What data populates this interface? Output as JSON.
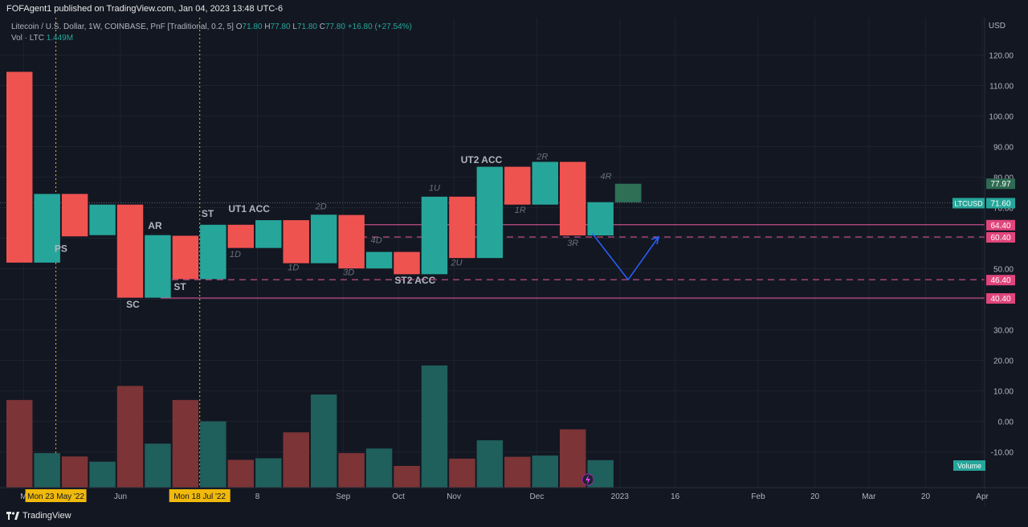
{
  "header": {
    "published": "FOFAgent1 published on TradingView.com, Jan 04, 2023 13:48 UTC-6"
  },
  "legend": {
    "symbol": "Litecoin / U.S. Dollar, 1W, COINBASE, PnF [Traditional, 0.2, 5]",
    "o_label": "O",
    "o": "71.80",
    "h_label": "H",
    "h": "77.80",
    "l_label": "L",
    "l": "71.80",
    "c_label": "C",
    "c": "77.80",
    "change": "+16.80 (+27.54%)",
    "vol_label": "Vol · LTC",
    "vol_value": "1.449M"
  },
  "footer": {
    "brand": "TradingView"
  },
  "colors": {
    "up": "#26a69a",
    "down": "#ef5350",
    "level": "#e85aa0",
    "projection": "#2962ff",
    "marker": "#f0b90b"
  },
  "chart_data": {
    "type": "candlestick",
    "price_axis": {
      "currency": "USD",
      "ticks": [
        "120.00",
        "110.00",
        "100.00",
        "90.00",
        "80.00",
        "70.00",
        "60.00",
        "50.00",
        "40.00",
        "30.00",
        "20.00",
        "10.00",
        "0.00",
        "-10.00"
      ],
      "range": [
        -20,
        130
      ]
    },
    "bars": [
      {
        "open": 114.5,
        "close": 52.0
      },
      {
        "open": 52.0,
        "close": 74.5
      },
      {
        "open": 74.5,
        "close": 60.6
      },
      {
        "open": 61.0,
        "close": 71.0
      },
      {
        "open": 71.0,
        "close": 40.5
      },
      {
        "open": 40.5,
        "close": 61.0
      },
      {
        "open": 60.8,
        "close": 46.6
      },
      {
        "open": 46.6,
        "close": 64.4
      },
      {
        "open": 64.4,
        "close": 56.8
      },
      {
        "open": 56.8,
        "close": 65.9
      },
      {
        "open": 65.9,
        "close": 51.8
      },
      {
        "open": 51.8,
        "close": 67.7
      },
      {
        "open": 67.6,
        "close": 50.1
      },
      {
        "open": 50.1,
        "close": 55.5
      },
      {
        "open": 55.5,
        "close": 48.2
      },
      {
        "open": 48.2,
        "close": 73.6
      },
      {
        "open": 73.6,
        "close": 53.5
      },
      {
        "open": 53.5,
        "close": 83.4
      },
      {
        "open": 83.4,
        "close": 71.0
      },
      {
        "open": 71.0,
        "close": 85.0
      },
      {
        "open": 85.0,
        "close": 60.9
      },
      {
        "open": 60.9,
        "close": 71.8
      },
      {
        "open": 71.8,
        "close": 77.8
      }
    ],
    "volume_panel_values": [
      7.0,
      -10.4,
      -11.5,
      -13.2,
      11.6,
      -7.3,
      7.0,
      0.0,
      -12.6,
      -12.1,
      -3.6,
      8.8,
      -10.4,
      -8.9,
      -14.6,
      18.3,
      -12.2,
      -6.2,
      -11.6,
      -11.2,
      -2.6,
      -12.7
    ],
    "levels": [
      {
        "value": 64.4,
        "style": "solid"
      },
      {
        "value": 60.4,
        "style": "dashed"
      },
      {
        "value": 46.4,
        "style": "dashed"
      },
      {
        "value": 40.4,
        "style": "solid"
      },
      {
        "value": 71.6,
        "style": "dotted"
      }
    ],
    "price_badges": [
      {
        "label": "77.97"
      },
      {
        "label": "LTCUSD",
        "value": "71.60"
      },
      {
        "label": "64.40"
      },
      {
        "label": "60.40"
      },
      {
        "label": "46.40"
      },
      {
        "label": "40.40"
      }
    ],
    "volume_badge": "Volume",
    "projection": [
      {
        "bar": 21.2,
        "price": 61.6
      },
      {
        "bar": 22.5,
        "price": 46.4
      },
      {
        "bar": 23.6,
        "price": 60.4
      }
    ],
    "annotations": [
      {
        "text": "PS",
        "bar": 2.0,
        "price": 55.5,
        "style": "event"
      },
      {
        "text": "SC",
        "bar": 4.6,
        "price": 37.2,
        "style": "event"
      },
      {
        "text": "AR",
        "bar": 5.4,
        "price": 63.0,
        "style": "event"
      },
      {
        "text": "ST",
        "bar": 6.3,
        "price": 43.0,
        "style": "event"
      },
      {
        "text": "ST",
        "bar": 7.3,
        "price": 67.0,
        "style": "event"
      },
      {
        "text": "UT1 ACC",
        "bar": 8.8,
        "price": 68.5,
        "style": "event"
      },
      {
        "text": "1D",
        "bar": 8.3,
        "price": 53.8,
        "style": "count"
      },
      {
        "text": "1D",
        "bar": 10.4,
        "price": 49.5,
        "style": "count"
      },
      {
        "text": "2D",
        "bar": 11.4,
        "price": 69.5,
        "style": "count"
      },
      {
        "text": "3D",
        "bar": 12.4,
        "price": 47.9,
        "style": "count"
      },
      {
        "text": "4D",
        "bar": 13.4,
        "price": 58.4,
        "style": "count"
      },
      {
        "text": "ST2 ACC",
        "bar": 14.8,
        "price": 45.1,
        "style": "event"
      },
      {
        "text": "1U",
        "bar": 15.5,
        "price": 75.5,
        "style": "count"
      },
      {
        "text": "2U",
        "bar": 16.3,
        "price": 51.1,
        "style": "count"
      },
      {
        "text": "UT2 ACC",
        "bar": 17.2,
        "price": 84.6,
        "style": "event"
      },
      {
        "text": "1R",
        "bar": 18.6,
        "price": 68.3,
        "style": "count"
      },
      {
        "text": "2R",
        "bar": 19.4,
        "price": 85.8,
        "style": "count"
      },
      {
        "text": "3R",
        "bar": 20.5,
        "price": 57.5,
        "style": "count"
      },
      {
        "text": "4R",
        "bar": 21.7,
        "price": 79.4,
        "style": "count"
      }
    ],
    "time_axis": {
      "labels": [
        {
          "text": "M",
          "bar": 0.65
        },
        {
          "text": "Jun",
          "bar": 4.15
        },
        {
          "text": "8",
          "bar": 9.1
        },
        {
          "text": "Sep",
          "bar": 12.2
        },
        {
          "text": "Oct",
          "bar": 14.2
        },
        {
          "text": "Nov",
          "bar": 16.2
        },
        {
          "text": "Dec",
          "bar": 19.2
        },
        {
          "text": "2023",
          "bar": 22.2
        },
        {
          "text": "16",
          "bar": 24.2
        },
        {
          "text": "Feb",
          "bar": 27.2
        },
        {
          "text": "20",
          "bar": 29.25
        },
        {
          "text": "Mar",
          "bar": 31.2
        },
        {
          "text": "20",
          "bar": 33.25
        },
        {
          "text": "Apr",
          "bar": 35.3
        }
      ],
      "markers": [
        {
          "text": "Mon 23 May '22",
          "bar": 1.7
        },
        {
          "text": "Mon 18 Jul '22",
          "bar": 6.9
        }
      ]
    }
  }
}
